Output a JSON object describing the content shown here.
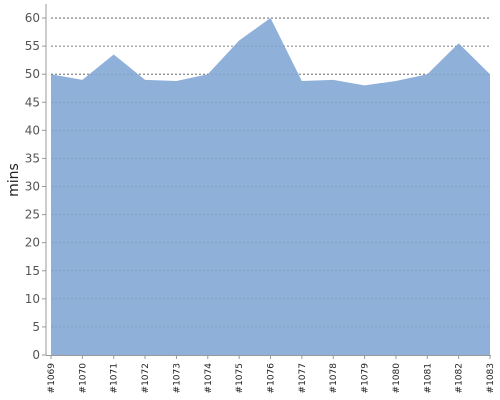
{
  "chart_data": {
    "type": "area",
    "title": "",
    "xlabel": "",
    "ylabel": "mins",
    "categories": [
      "#1069",
      "#1070",
      "#1071",
      "#1072",
      "#1073",
      "#1074",
      "#1075",
      "#1076",
      "#1077",
      "#1078",
      "#1079",
      "#1080",
      "#1081",
      "#1082",
      "#1083"
    ],
    "values": [
      50,
      49,
      53.5,
      49,
      48.8,
      50,
      56,
      60,
      48.8,
      49,
      48,
      48.8,
      50,
      55.5,
      50
    ],
    "ylim": [
      0,
      62.5
    ],
    "yticks": [
      0,
      5,
      10,
      15,
      20,
      25,
      30,
      35,
      40,
      45,
      50,
      55,
      60
    ],
    "grid": true,
    "legend": "none",
    "colors": {
      "fill": "#8fb0d9",
      "grid": "#555555",
      "axis": "#999999"
    }
  }
}
